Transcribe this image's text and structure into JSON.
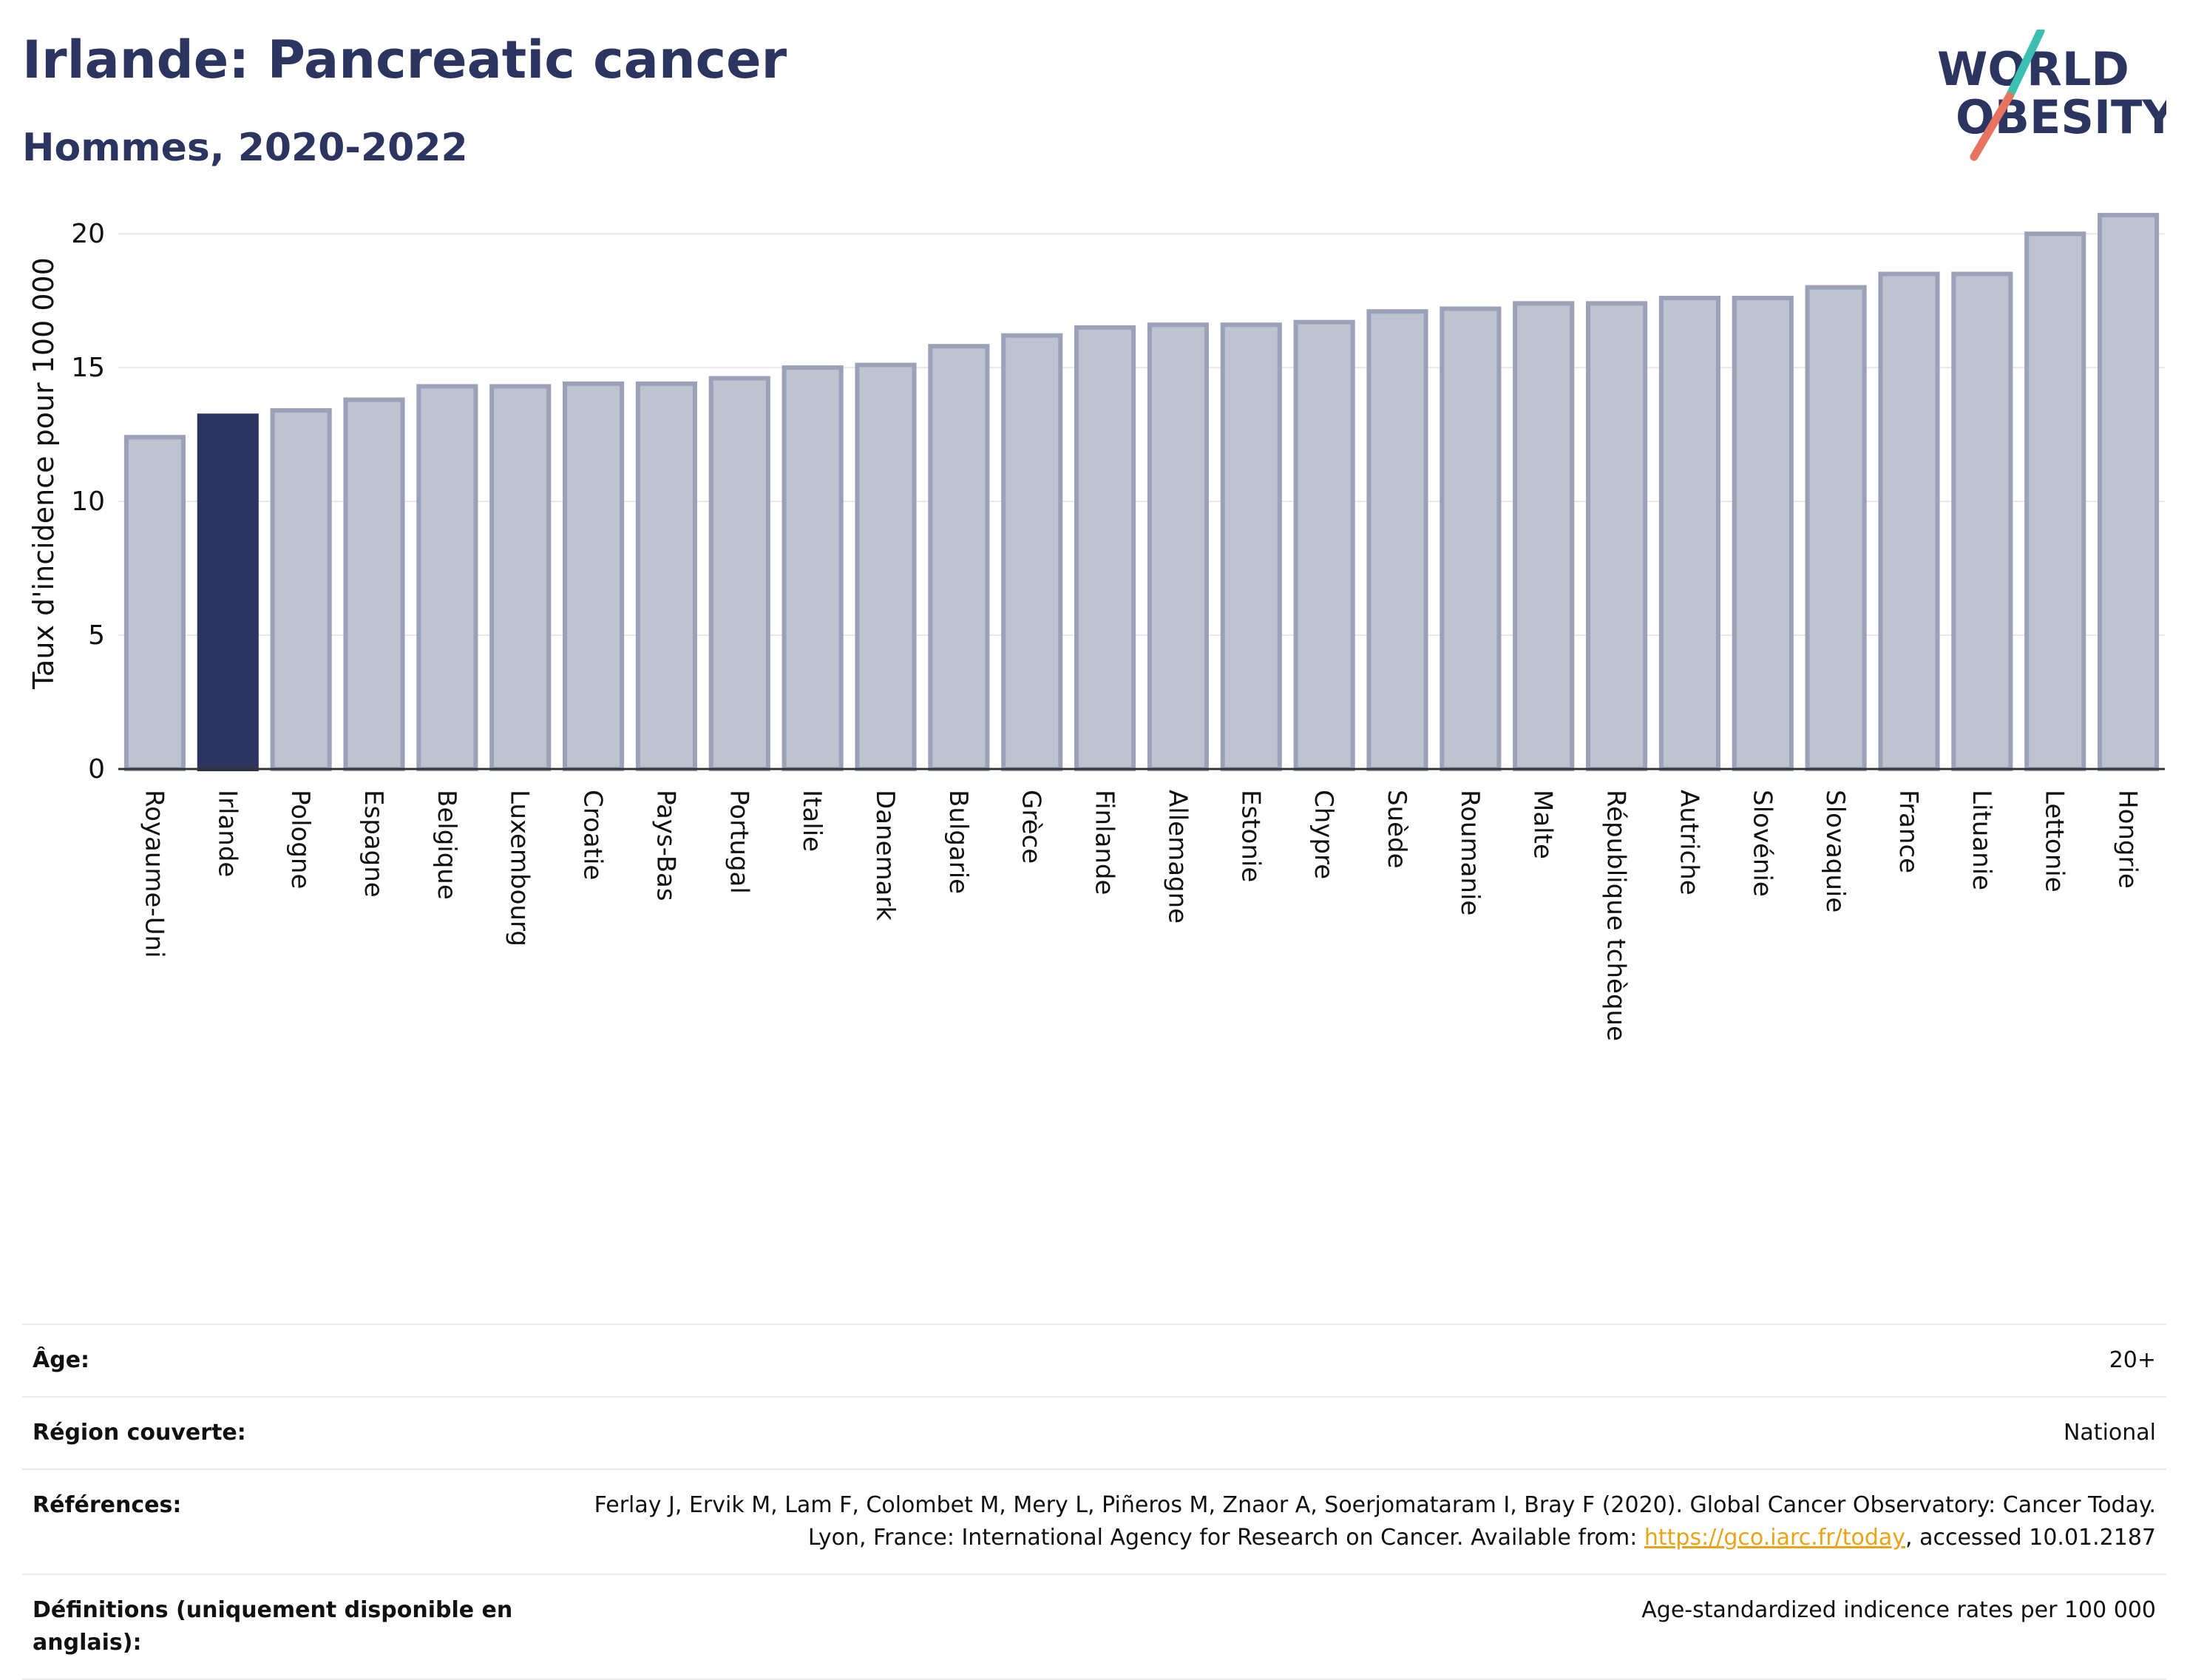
{
  "header": {
    "title": "Irlande: Pancreatic cancer",
    "subtitle": "Hommes, 2020-2022"
  },
  "logo": {
    "line1": "WORLD",
    "line2": "OBESITY"
  },
  "colors": {
    "highlight": "#2b3560",
    "bar": "#bfc3cf",
    "bar_edge": "#9aa1b8",
    "logo_teal": "#3bbfb0",
    "logo_coral": "#e8735f"
  },
  "chart_data": {
    "type": "bar",
    "title": "Irlande: Pancreatic cancer",
    "subtitle": "Hommes, 2020-2022",
    "ylabel": "Taux d'incidence pour 100 000",
    "xlabel": "",
    "ylim": [
      0,
      21
    ],
    "yticks": [
      0,
      5,
      10,
      15,
      20
    ],
    "grid": true,
    "highlight": "Irlande",
    "categories": [
      "Royaume-Uni",
      "Irlande",
      "Pologne",
      "Espagne",
      "Belgique",
      "Luxembourg",
      "Croatie",
      "Pays-Bas",
      "Portugal",
      "Italie",
      "Danemark",
      "Bulgarie",
      "Grèce",
      "Finlande",
      "Allemagne",
      "Estonie",
      "Chypre",
      "Suède",
      "Roumanie",
      "Malte",
      "République tchèque",
      "Autriche",
      "Slovénie",
      "Slovaquie",
      "France",
      "Lituanie",
      "Lettonie",
      "Hongrie"
    ],
    "values": [
      12.4,
      13.2,
      13.4,
      13.8,
      14.3,
      14.3,
      14.4,
      14.4,
      14.6,
      15.0,
      15.1,
      15.8,
      16.2,
      16.5,
      16.6,
      16.6,
      16.7,
      17.1,
      17.2,
      17.4,
      17.4,
      17.6,
      17.6,
      18.0,
      18.5,
      18.5,
      20.0,
      20.7
    ]
  },
  "info": {
    "age_label": "Âge:",
    "age_value": "20+",
    "region_label": "Région couverte:",
    "region_value": "National",
    "refs_label": "Références:",
    "refs_text_1": "Ferlay J, Ervik M, Lam F, Colombet M, Mery L, Piñeros M, Znaor A, Soerjomataram I, Bray F (2020). Global Cancer Observatory: Cancer Today. Lyon, France: International Agency for Research on Cancer. Available from: ",
    "refs_link": "https://gco.iarc.fr/today",
    "refs_text_2": ", accessed 10.01.2187",
    "defs_label": "Définitions (uniquement disponible en anglais):",
    "defs_value": "Age-standardized indicence rates per 100 000"
  }
}
